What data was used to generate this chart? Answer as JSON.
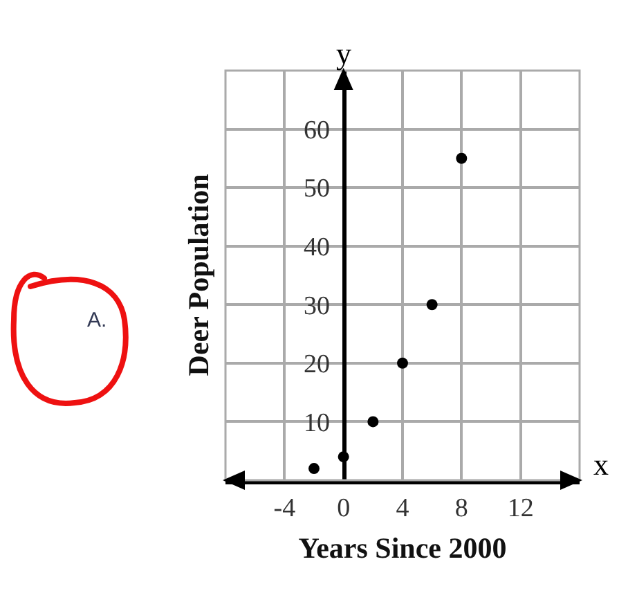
{
  "chart_data": {
    "type": "scatter",
    "xlabel": "Years Since 2000",
    "ylabel": "Deer Population",
    "x": [
      -2,
      0,
      2,
      4,
      6,
      8
    ],
    "values": [
      2,
      4,
      10,
      20,
      30,
      55
    ],
    "color": "#000000",
    "marker": "circle",
    "xlim": [
      -8,
      16
    ],
    "xticks": [
      -4,
      0,
      4,
      8,
      12
    ],
    "ylim": [
      0,
      70
    ],
    "yticks": [
      10,
      20,
      30,
      40,
      50,
      60
    ],
    "grid": true,
    "annotations": [
      "A.",
      "x",
      "y"
    ]
  }
}
